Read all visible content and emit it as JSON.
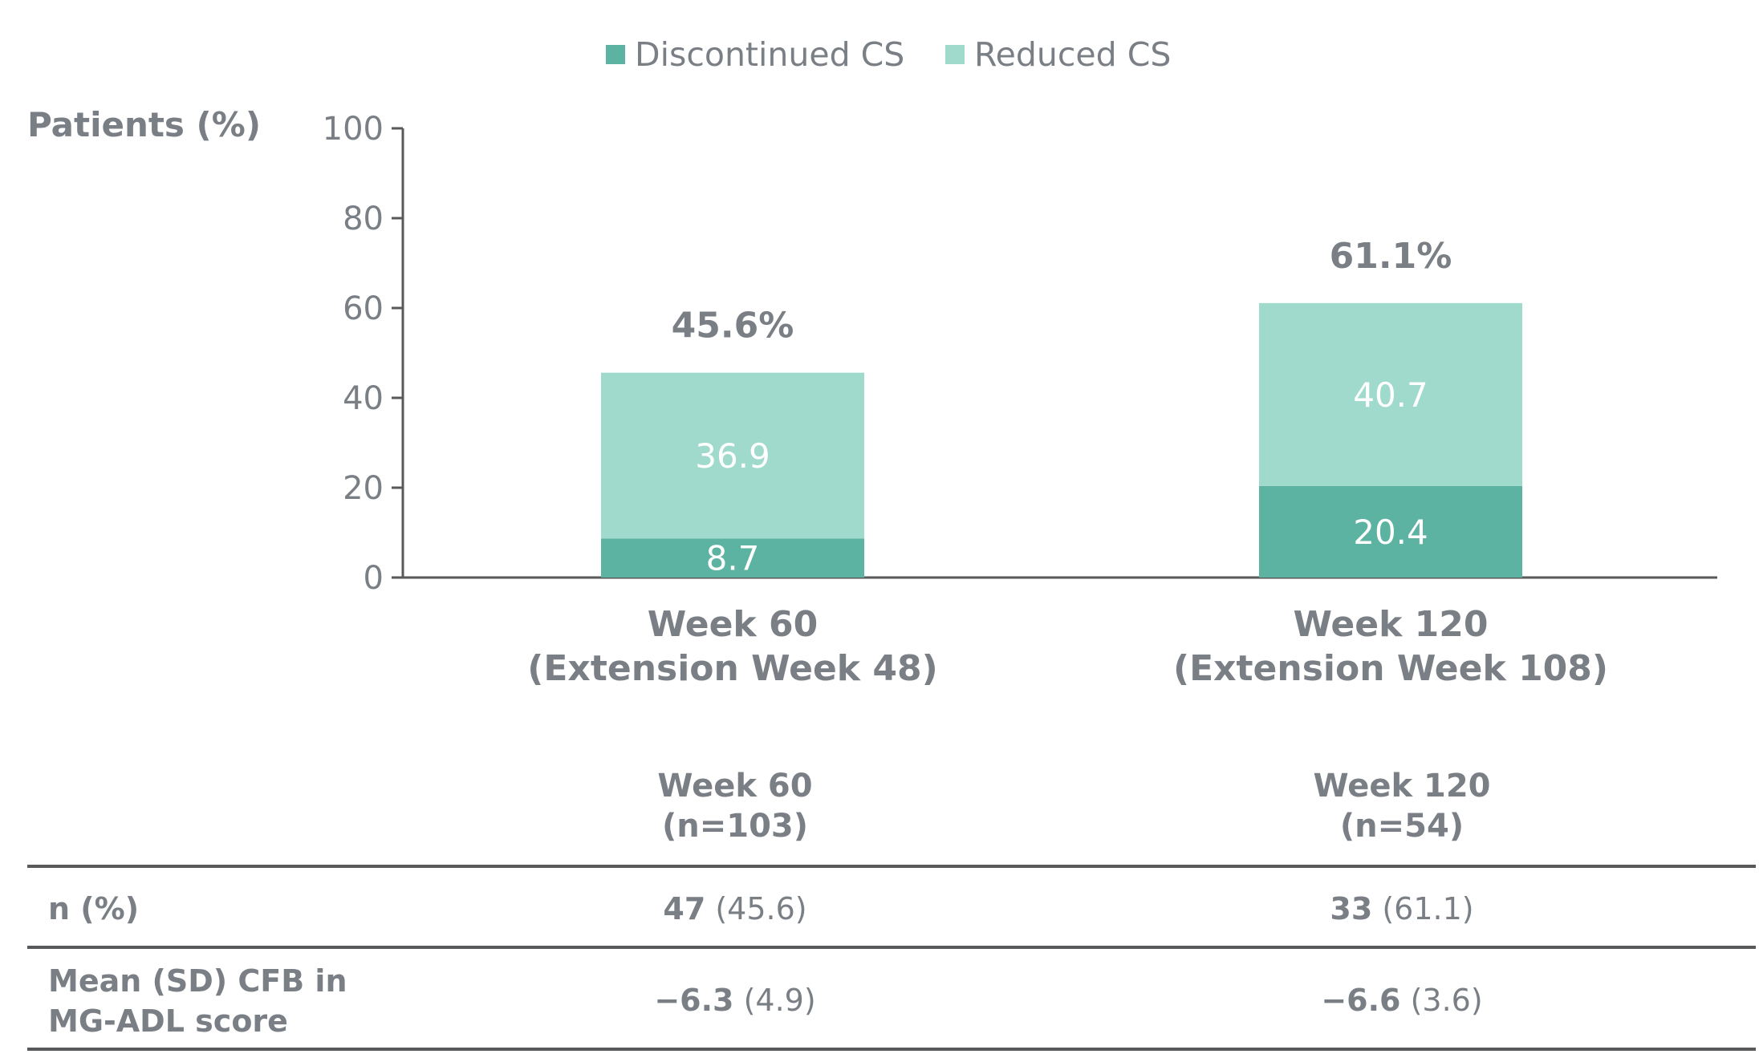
{
  "chart_data": {
    "type": "bar",
    "stacked": true,
    "categories": [
      [
        "Week 60",
        "(Extension Week 48)"
      ],
      [
        "Week 120",
        "(Extension Week 108)"
      ]
    ],
    "series": [
      {
        "name": "Discontinued CS",
        "values": [
          8.7,
          20.4
        ],
        "color": "#5cb3a1",
        "label_values": [
          "8.7",
          "20.4"
        ]
      },
      {
        "name": "Reduced CS",
        "values": [
          36.9,
          40.7
        ],
        "color": "#a0dacd",
        "label_values": [
          "36.9",
          "40.7"
        ]
      }
    ],
    "totals": [
      "45.6%",
      "61.1%"
    ],
    "ylabel": "Patients (%)",
    "ylim": [
      0,
      100
    ],
    "yticks": [
      0,
      20,
      40,
      60,
      80,
      100
    ],
    "legend_position": "top-center",
    "grid": false
  },
  "table": {
    "columns": [
      {
        "line1": "Week 60",
        "line2": "(n=103)"
      },
      {
        "line1": "Week 120",
        "line2": "(n=54)"
      }
    ],
    "rows": [
      {
        "label_lines": [
          "n (%)"
        ],
        "cells": [
          {
            "bold": "47",
            "rest": "(45.6)"
          },
          {
            "bold": "33",
            "rest": "(61.1)"
          }
        ]
      },
      {
        "label_lines": [
          "Mean (SD) CFB in",
          "MG-ADL score"
        ],
        "cells": [
          {
            "bold": "−6.3",
            "rest": "(4.9)"
          },
          {
            "bold": "−6.6",
            "rest": "(3.6)"
          }
        ]
      }
    ]
  },
  "colors": {
    "text": "#7a7f85",
    "axis": "#58595b",
    "discontinued": "#5cb3a1",
    "reduced": "#a0dacd"
  }
}
